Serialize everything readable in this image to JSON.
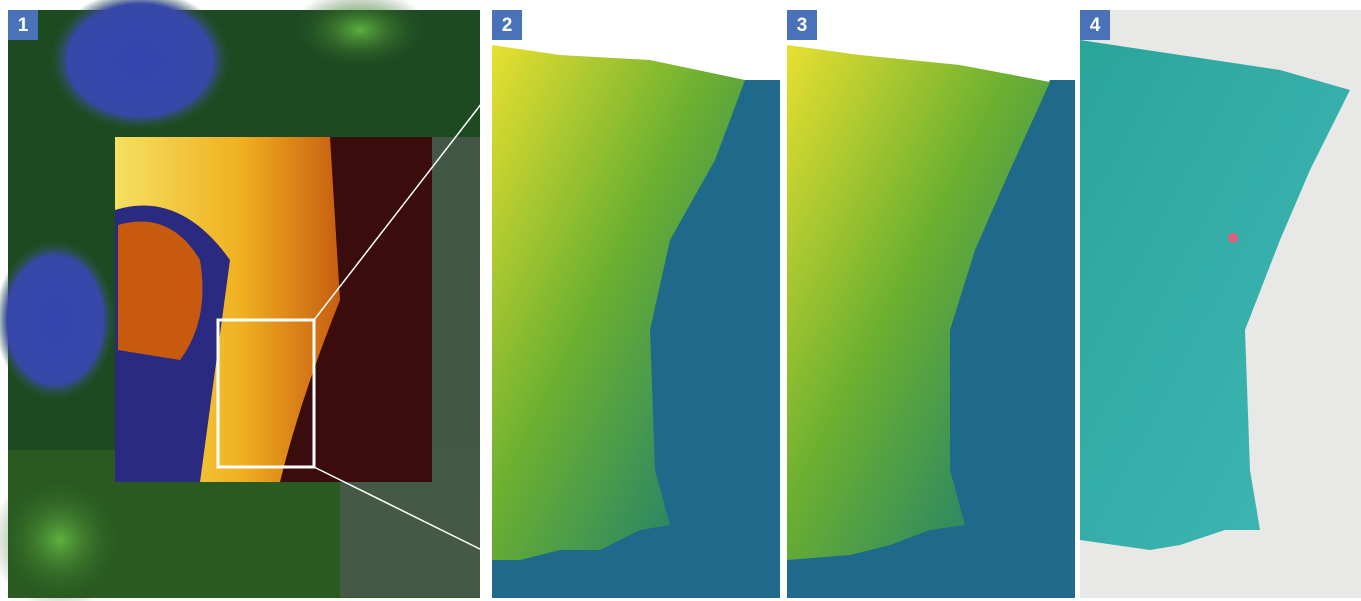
{
  "panels": [
    {
      "label": "1"
    },
    {
      "label": "2"
    },
    {
      "label": "3"
    },
    {
      "label": "4"
    }
  ]
}
